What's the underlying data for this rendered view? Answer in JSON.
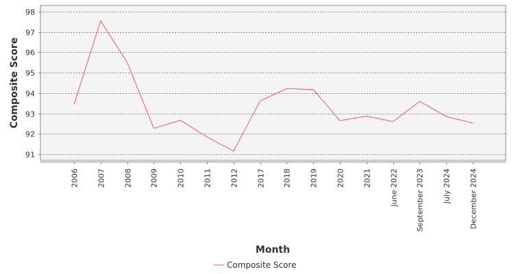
{
  "chart_data": {
    "type": "line",
    "title": "",
    "xlabel": "Month",
    "ylabel": "Composite Score",
    "categories": [
      "2006",
      "2007",
      "2008",
      "2009",
      "2010",
      "2011",
      "2012",
      "2017",
      "2018",
      "2019",
      "2020",
      "2021",
      "June 2022",
      "September 2023",
      "July 2024",
      "December 2024"
    ],
    "series": [
      {
        "name": "Composite Score",
        "color": "#ff5555",
        "values": [
          93.45,
          97.55,
          95.5,
          92.27,
          92.67,
          91.85,
          91.15,
          93.62,
          94.22,
          94.17,
          92.65,
          92.87,
          92.6,
          93.6,
          92.85,
          92.53
        ]
      }
    ],
    "ylim": [
      90.7,
      98.3
    ],
    "yticks": [
      91,
      92,
      93,
      94,
      95,
      96,
      97,
      98
    ],
    "grid": true,
    "legend": "bottom-center",
    "plot_background": "#f4f4f4",
    "grid_color": "#666666"
  }
}
